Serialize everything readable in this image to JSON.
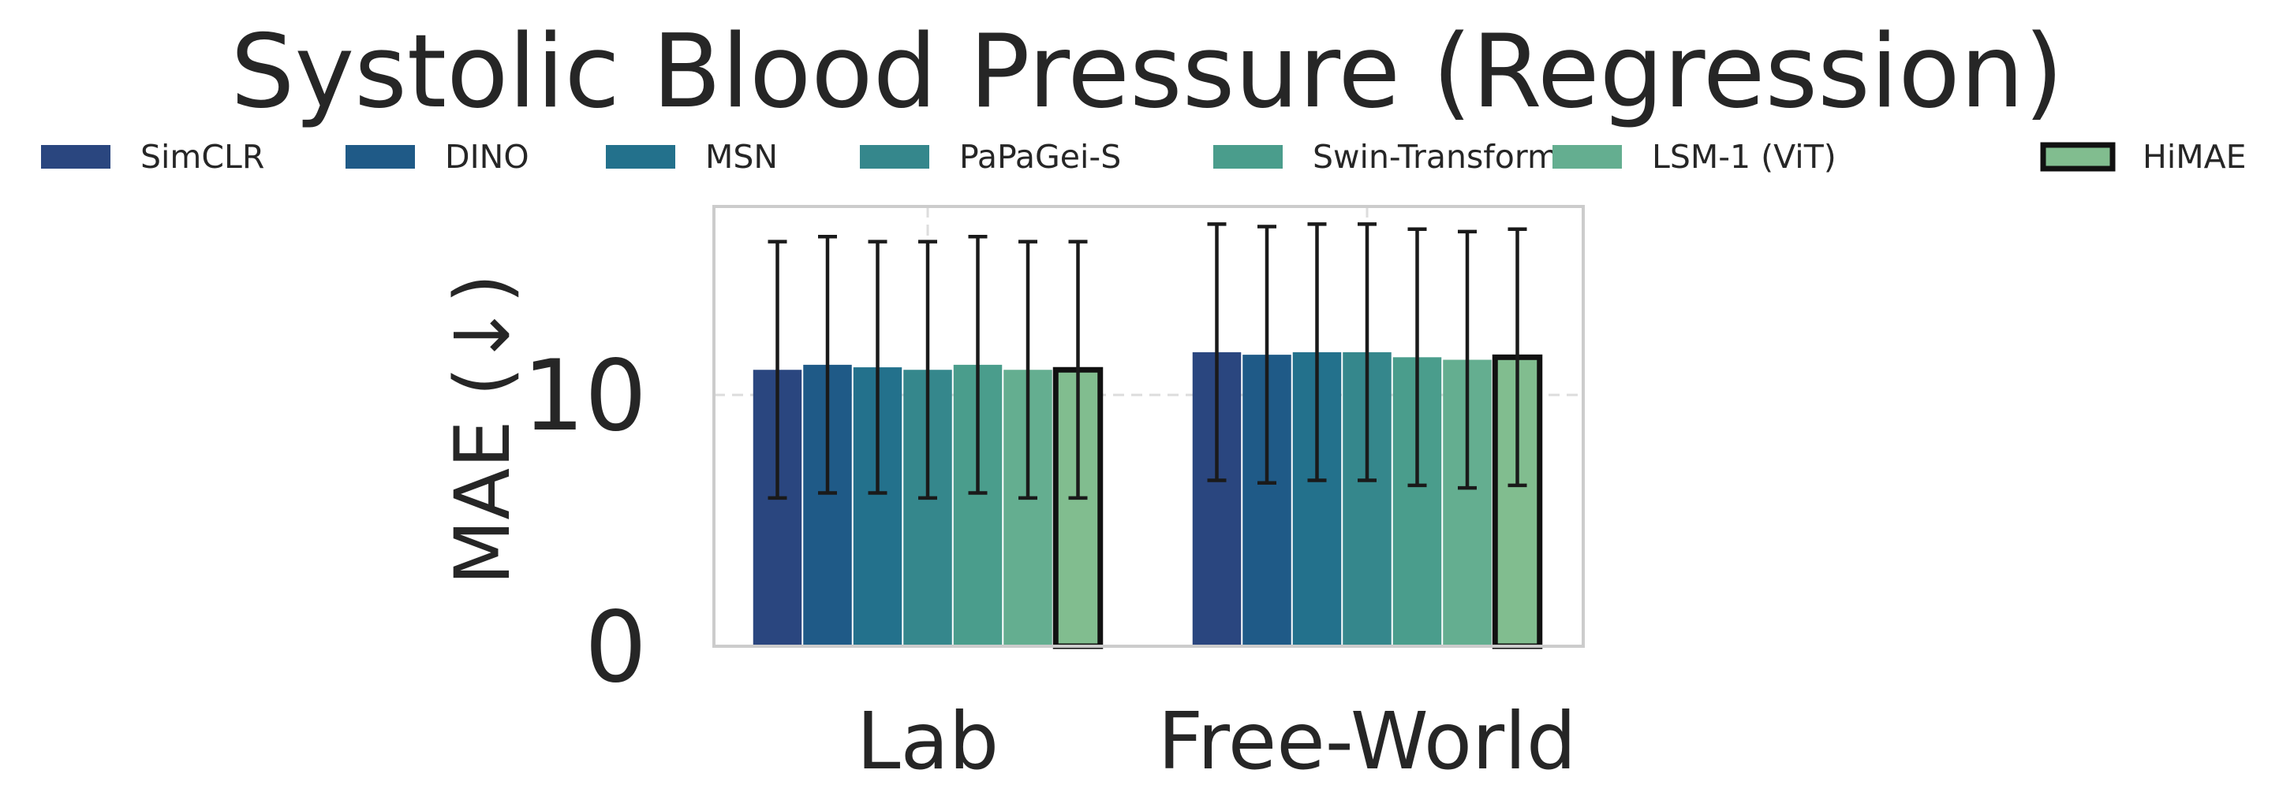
{
  "chart_data": {
    "type": "bar",
    "title": "Systolic Blood Pressure (Regression)",
    "xlabel": "",
    "ylabel": "MAE (↓)",
    "ylim": [
      0,
      17.5
    ],
    "yticks": [
      0,
      10
    ],
    "grid": true,
    "legend_position": "top",
    "categories": [
      "Lab",
      "Free-World"
    ],
    "series": [
      {
        "name": "SimCLR",
        "color": "#2a467f",
        "values": [
          11.0,
          11.7
        ],
        "errors": [
          5.1,
          5.1
        ],
        "highlight": false
      },
      {
        "name": "DINO",
        "color": "#1f5a87",
        "values": [
          11.2,
          11.6
        ],
        "errors": [
          5.1,
          5.1
        ],
        "highlight": false
      },
      {
        "name": "MSN",
        "color": "#23718c",
        "values": [
          11.1,
          11.7
        ],
        "errors": [
          5.0,
          5.1
        ],
        "highlight": false
      },
      {
        "name": "PaPaGei-S",
        "color": "#35878c",
        "values": [
          11.0,
          11.7
        ],
        "errors": [
          5.1,
          5.1
        ],
        "highlight": false
      },
      {
        "name": "Swin-Transformer",
        "color": "#4a9d8c",
        "values": [
          11.2,
          11.5
        ],
        "errors": [
          5.1,
          5.1
        ],
        "highlight": false
      },
      {
        "name": "LSM-1 (ViT)",
        "color": "#64ae90",
        "values": [
          11.0,
          11.4
        ],
        "errors": [
          5.1,
          5.1
        ],
        "highlight": false
      },
      {
        "name": "HiMAE",
        "color": "#81bd8f",
        "values": [
          11.0,
          11.5
        ],
        "errors": [
          5.1,
          5.1
        ],
        "highlight": true
      }
    ],
    "colors": {
      "axis_frame": "#cccccc",
      "grid": "#dddddd",
      "error_bar": "#1a1a1a",
      "highlight_edge": "#111111",
      "text": "#262626"
    }
  }
}
